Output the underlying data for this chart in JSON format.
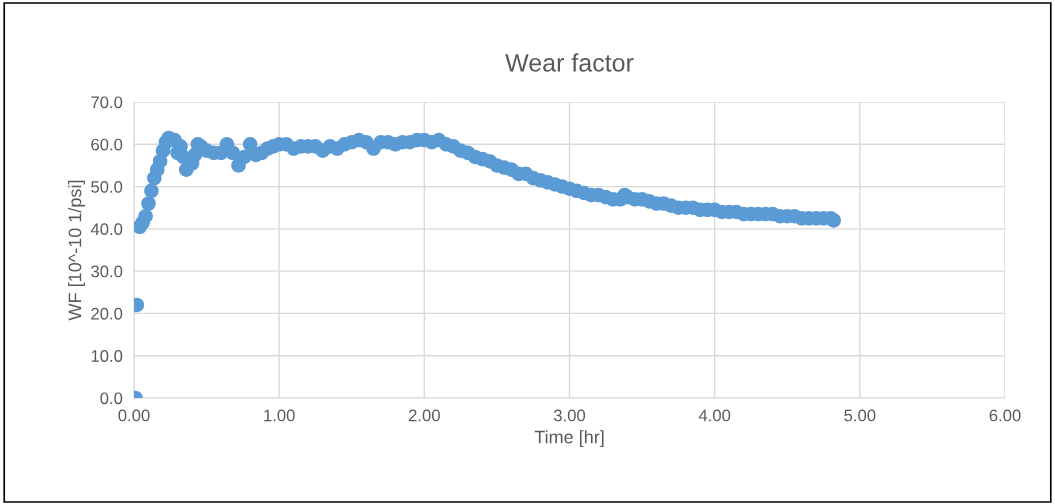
{
  "chart_data": {
    "type": "scatter",
    "title": "Wear factor",
    "xlabel": "Time [hr]",
    "ylabel": "WF [10^-10 1/psi]",
    "x": [
      0.01,
      0.02,
      0.04,
      0.06,
      0.08,
      0.1,
      0.12,
      0.14,
      0.16,
      0.18,
      0.2,
      0.22,
      0.24,
      0.28,
      0.3,
      0.32,
      0.34,
      0.36,
      0.4,
      0.42,
      0.44,
      0.46,
      0.5,
      0.55,
      0.6,
      0.64,
      0.68,
      0.72,
      0.76,
      0.8,
      0.84,
      0.88,
      0.92,
      0.96,
      1.0,
      1.05,
      1.1,
      1.15,
      1.2,
      1.25,
      1.3,
      1.35,
      1.4,
      1.45,
      1.5,
      1.55,
      1.6,
      1.65,
      1.7,
      1.75,
      1.8,
      1.85,
      1.9,
      1.95,
      2.0,
      2.05,
      2.1,
      2.15,
      2.2,
      2.25,
      2.3,
      2.35,
      2.4,
      2.45,
      2.5,
      2.55,
      2.6,
      2.65,
      2.7,
      2.75,
      2.8,
      2.85,
      2.9,
      2.95,
      3.0,
      3.05,
      3.1,
      3.15,
      3.2,
      3.25,
      3.3,
      3.35,
      3.38,
      3.4,
      3.45,
      3.5,
      3.55,
      3.6,
      3.65,
      3.7,
      3.75,
      3.8,
      3.85,
      3.9,
      3.95,
      4.0,
      4.05,
      4.1,
      4.15,
      4.2,
      4.25,
      4.3,
      4.35,
      4.4,
      4.45,
      4.5,
      4.55,
      4.6,
      4.65,
      4.7,
      4.75,
      4.8,
      4.82
    ],
    "series": [
      {
        "color": "#5b9bd5",
        "values": [
          0,
          22,
          40.5,
          41.5,
          43,
          46,
          49,
          52,
          54,
          56,
          58.5,
          60.5,
          61.5,
          61,
          58,
          59.5,
          57,
          54,
          55.5,
          57.5,
          60,
          59.5,
          58.5,
          58,
          58,
          60,
          58,
          55,
          57,
          60,
          57.5,
          58,
          59,
          59.5,
          60,
          60,
          59,
          59.5,
          59.5,
          59.5,
          58.5,
          59.5,
          59,
          60,
          60.5,
          61,
          60.5,
          59,
          60.5,
          60.5,
          60,
          60.5,
          60.5,
          61,
          61,
          60.5,
          61,
          60,
          59.5,
          58.5,
          58,
          57,
          56.5,
          56,
          55,
          54.5,
          54,
          53,
          53,
          52,
          51.5,
          51,
          50.5,
          50,
          49.5,
          49,
          48.5,
          48,
          48,
          47.5,
          47,
          47,
          48,
          47.5,
          47,
          47,
          46.5,
          46,
          46,
          45.5,
          45,
          45,
          45,
          44.5,
          44.5,
          44.5,
          44,
          44,
          44,
          43.5,
          43.5,
          43.5,
          43.5,
          43.5,
          43,
          43,
          43,
          42.5,
          42.5,
          42.5,
          42.5,
          42.5,
          42
        ]
      }
    ],
    "xlim": [
      0,
      6
    ],
    "xticks": [
      {
        "value": 0,
        "label": "0.00"
      },
      {
        "value": 1,
        "label": "1.00"
      },
      {
        "value": 2,
        "label": "2.00"
      },
      {
        "value": 3,
        "label": "3.00"
      },
      {
        "value": 4,
        "label": "4.00"
      },
      {
        "value": 5,
        "label": "5.00"
      },
      {
        "value": 6,
        "label": "6.00"
      }
    ],
    "ylim": [
      0,
      70
    ],
    "yticks": [
      {
        "value": 0,
        "label": "0.0"
      },
      {
        "value": 10,
        "label": "10.0"
      },
      {
        "value": 20,
        "label": "20.0"
      },
      {
        "value": 30,
        "label": "30.0"
      },
      {
        "value": 40,
        "label": "40.0"
      },
      {
        "value": 50,
        "label": "50.0"
      },
      {
        "value": 60,
        "label": "60.0"
      },
      {
        "value": 70,
        "label": "70.0"
      }
    ],
    "grid": true,
    "marker": "circle"
  }
}
